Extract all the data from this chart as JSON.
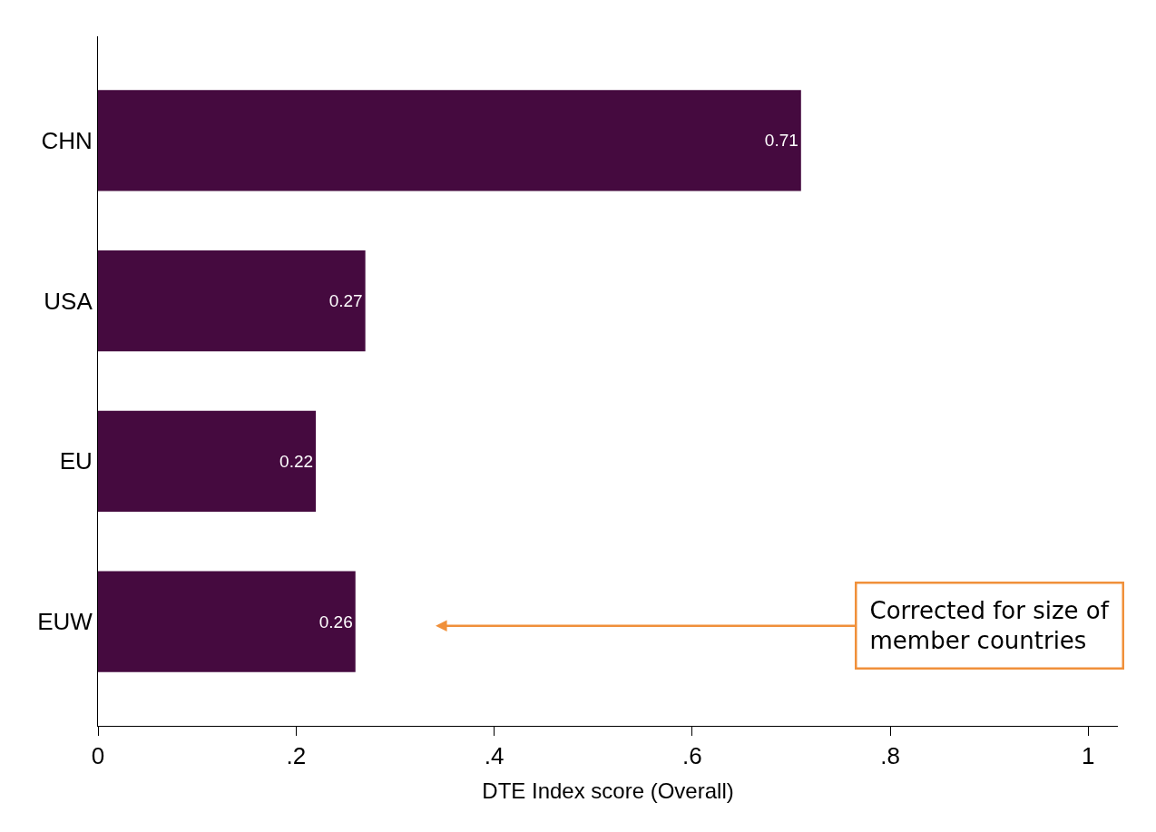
{
  "chart_data": {
    "type": "bar",
    "orientation": "horizontal",
    "xlabel": "DTE Index score (Overall)",
    "categories": [
      "CHN",
      "USA",
      "EU",
      "EUW"
    ],
    "values": [
      0.71,
      0.27,
      0.22,
      0.26
    ],
    "color": "#450a3f",
    "data_labels": true,
    "xlim": [
      0,
      1.03
    ],
    "xticks": [
      0,
      {
        "value": 0.2,
        "label": ".2"
      },
      {
        "value": 0.4,
        "label": ".4"
      },
      {
        "value": 0.6,
        "label": ".6"
      },
      {
        "value": 0.8,
        "label": ".8"
      },
      1
    ],
    "annotations": [
      "Corrected for size of\nmember countries"
    ]
  }
}
